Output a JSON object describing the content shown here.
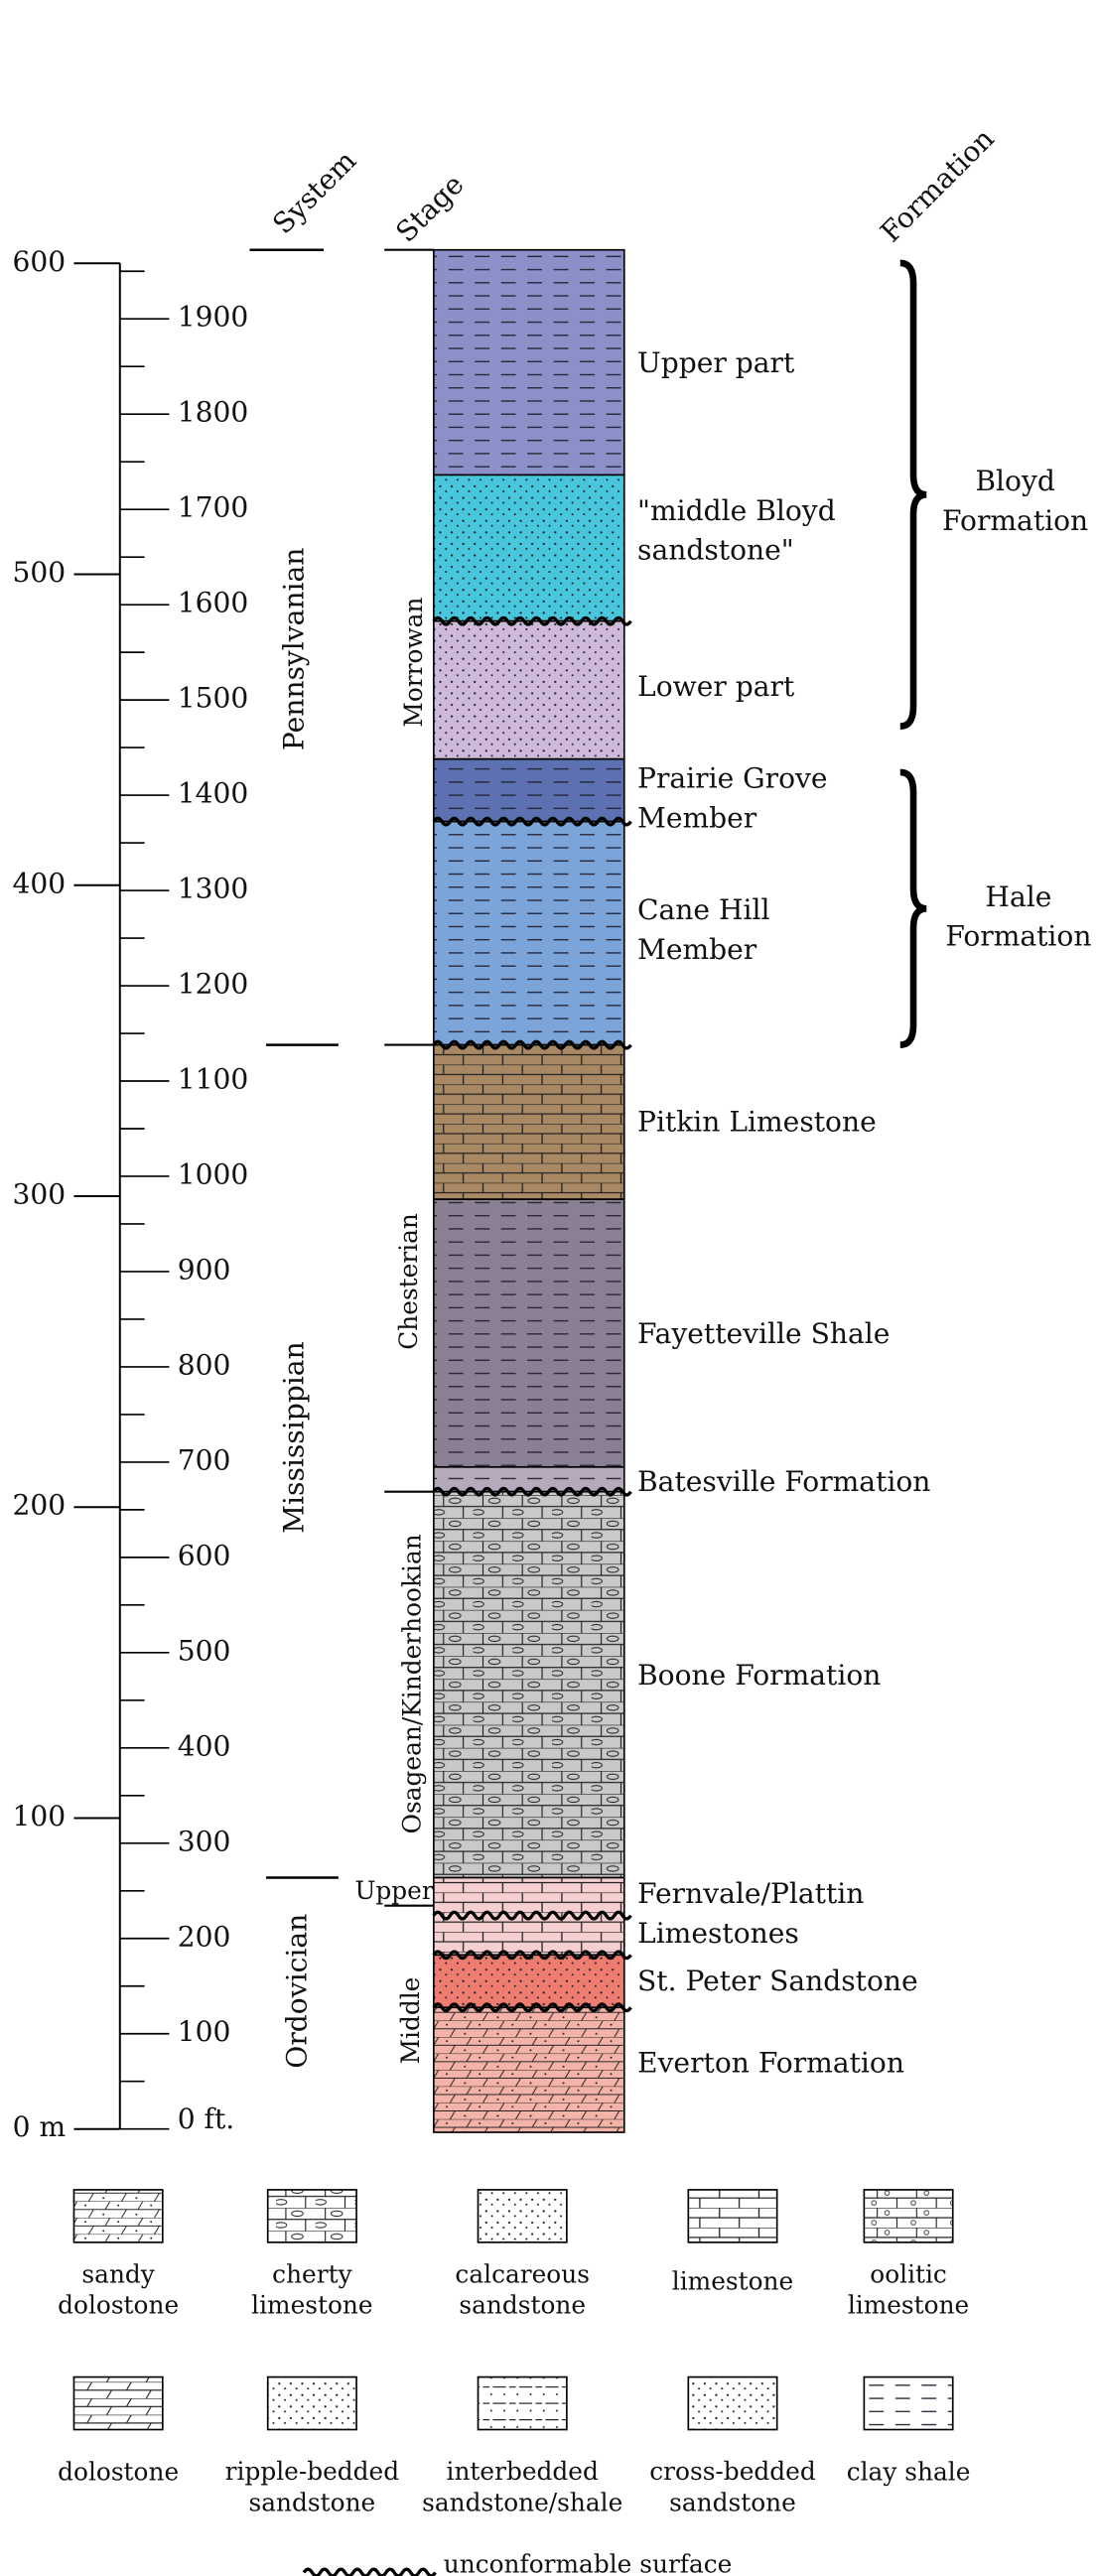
{
  "headers": {
    "system": "System",
    "stage": "Stage",
    "formation": "Formation"
  },
  "scale": {
    "meters": [
      "0 m",
      "100",
      "200",
      "300",
      "400",
      "500",
      "600"
    ],
    "feet": [
      "0 ft.",
      "100",
      "200",
      "300",
      "400",
      "500",
      "600",
      "700",
      "800",
      "900",
      "1000",
      "1100",
      "1200",
      "1300",
      "1400",
      "1500",
      "1600",
      "1700",
      "1800",
      "1900"
    ]
  },
  "systems": [
    "Pennsylvanian",
    "Mississippian",
    "Ordovician"
  ],
  "stages": [
    "Morrowan",
    "Chesterian",
    "Osagean/Kinderhookian",
    "Upper",
    "Middle"
  ],
  "units": [
    {
      "lines": [
        "Upper part"
      ]
    },
    {
      "lines": [
        "\"middle Bloyd",
        "sandstone\""
      ]
    },
    {
      "lines": [
        "Lower part"
      ]
    },
    {
      "lines": [
        "Prairie Grove",
        "Member"
      ]
    },
    {
      "lines": [
        "Cane Hill",
        "Member"
      ]
    },
    {
      "lines": [
        "Pitkin Limestone"
      ]
    },
    {
      "lines": [
        "Fayetteville Shale"
      ]
    },
    {
      "lines": [
        "Batesville Formation"
      ]
    },
    {
      "lines": [
        "Boone Formation"
      ]
    },
    {
      "lines": [
        "Fernvale/Plattin",
        "Limestones"
      ]
    },
    {
      "lines": [
        "St. Peter Sandstone"
      ]
    },
    {
      "lines": [
        "Everton Formation"
      ]
    }
  ],
  "formations": [
    {
      "lines": [
        "Bloyd",
        "Formation"
      ]
    },
    {
      "lines": [
        "Hale",
        "Formation"
      ]
    }
  ],
  "legend": [
    {
      "lines": [
        "sandy",
        "dolostone"
      ]
    },
    {
      "lines": [
        "cherty",
        "limestone"
      ]
    },
    {
      "lines": [
        "calcareous",
        "sandstone"
      ]
    },
    {
      "lines": [
        "limestone"
      ]
    },
    {
      "lines": [
        "oolitic",
        "limestone"
      ]
    },
    {
      "lines": [
        "dolostone"
      ]
    },
    {
      "lines": [
        "ripple-bedded",
        "sandstone"
      ]
    },
    {
      "lines": [
        "interbedded",
        "sandstone/shale"
      ]
    },
    {
      "lines": [
        "cross-bedded",
        "sandstone"
      ]
    },
    {
      "lines": [
        "clay shale"
      ]
    }
  ],
  "footer": "unconformable surface"
}
